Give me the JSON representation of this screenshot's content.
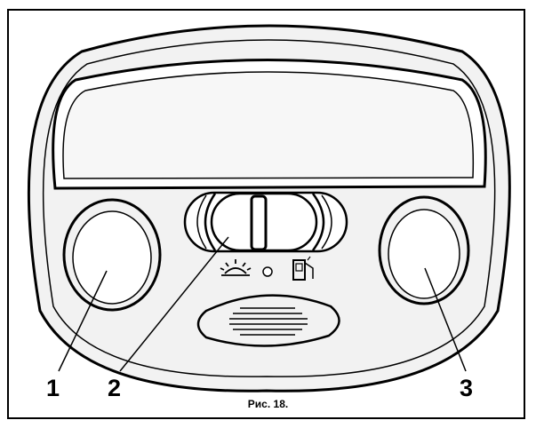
{
  "figure": {
    "caption": "Рис. 18.",
    "callouts": [
      {
        "id": "1",
        "label": "1"
      },
      {
        "id": "2",
        "label": "2"
      },
      {
        "id": "3",
        "label": "3"
      }
    ],
    "colors": {
      "ink": "#000000",
      "fill": "#f2f2f2",
      "paper": "#ffffff"
    },
    "icons": [
      "sun-lamp-icon",
      "indicator-dot-icon",
      "door-ajar-icon"
    ]
  }
}
